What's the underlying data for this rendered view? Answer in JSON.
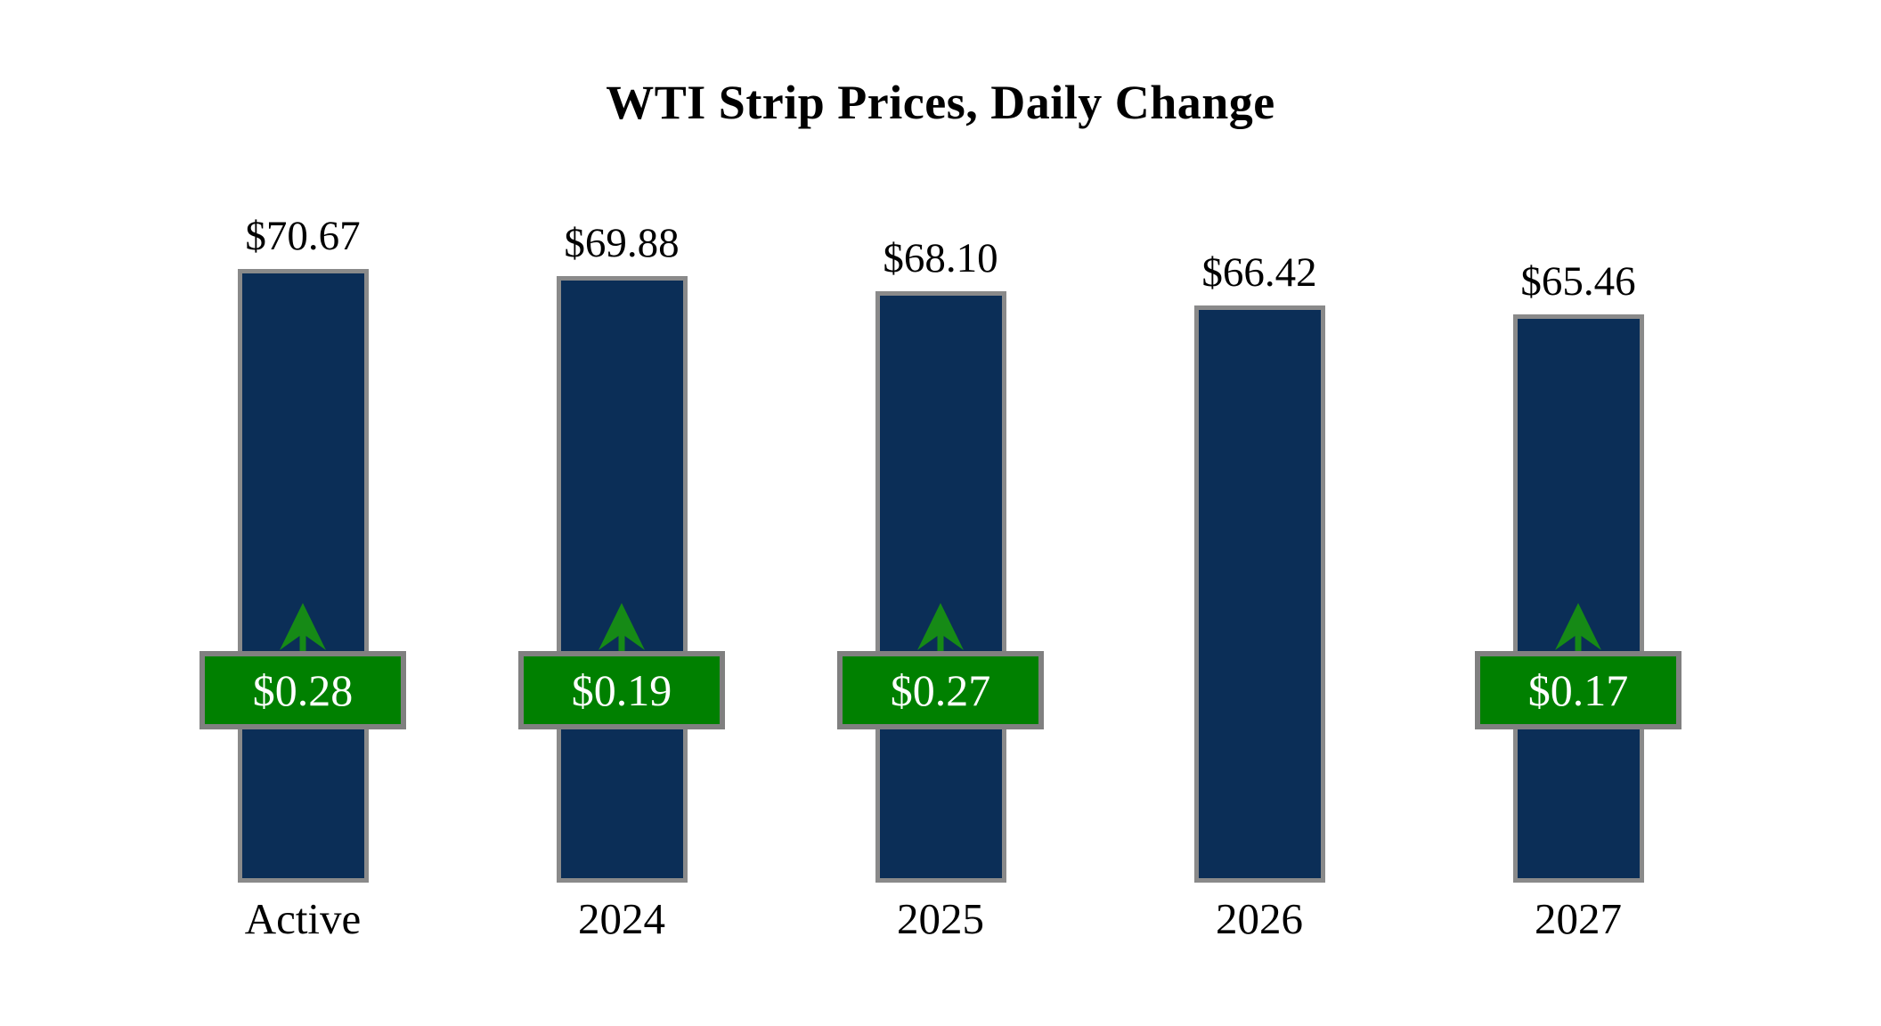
{
  "title": "WTI Strip Prices, Daily Change",
  "colors": {
    "background": "#ffffff",
    "text": "#000000",
    "bar_fill": "#0b2e57",
    "bar_border": "#8a8a8a",
    "badge_fill": "#008000",
    "badge_border": "#808080",
    "badge_text": "#ffffff",
    "arrow_green": "#168a16"
  },
  "chart_data": {
    "type": "bar",
    "title": "WTI Strip Prices, Daily Change",
    "categories": [
      "Active",
      "2024",
      "2025",
      "2026",
      "2027"
    ],
    "values": [
      70.67,
      69.88,
      68.1,
      66.42,
      65.46
    ],
    "value_labels": [
      "$70.67",
      "$69.88",
      "$68.10",
      "$66.42",
      "$65.46"
    ],
    "daily_changes": [
      0.28,
      0.19,
      0.27,
      null,
      0.17
    ],
    "change_labels": [
      "$0.28",
      "$0.19",
      "$0.27",
      null,
      "$0.17"
    ],
    "change_directions": [
      "up",
      "up",
      "up",
      null,
      "up"
    ],
    "ylabel": "",
    "xlabel": "",
    "ylim": [
      0,
      72.8
    ],
    "grid": false,
    "axes_visible": false,
    "legend": null,
    "bar_color": "#0b2e57",
    "change_badge_color": "#008000"
  }
}
